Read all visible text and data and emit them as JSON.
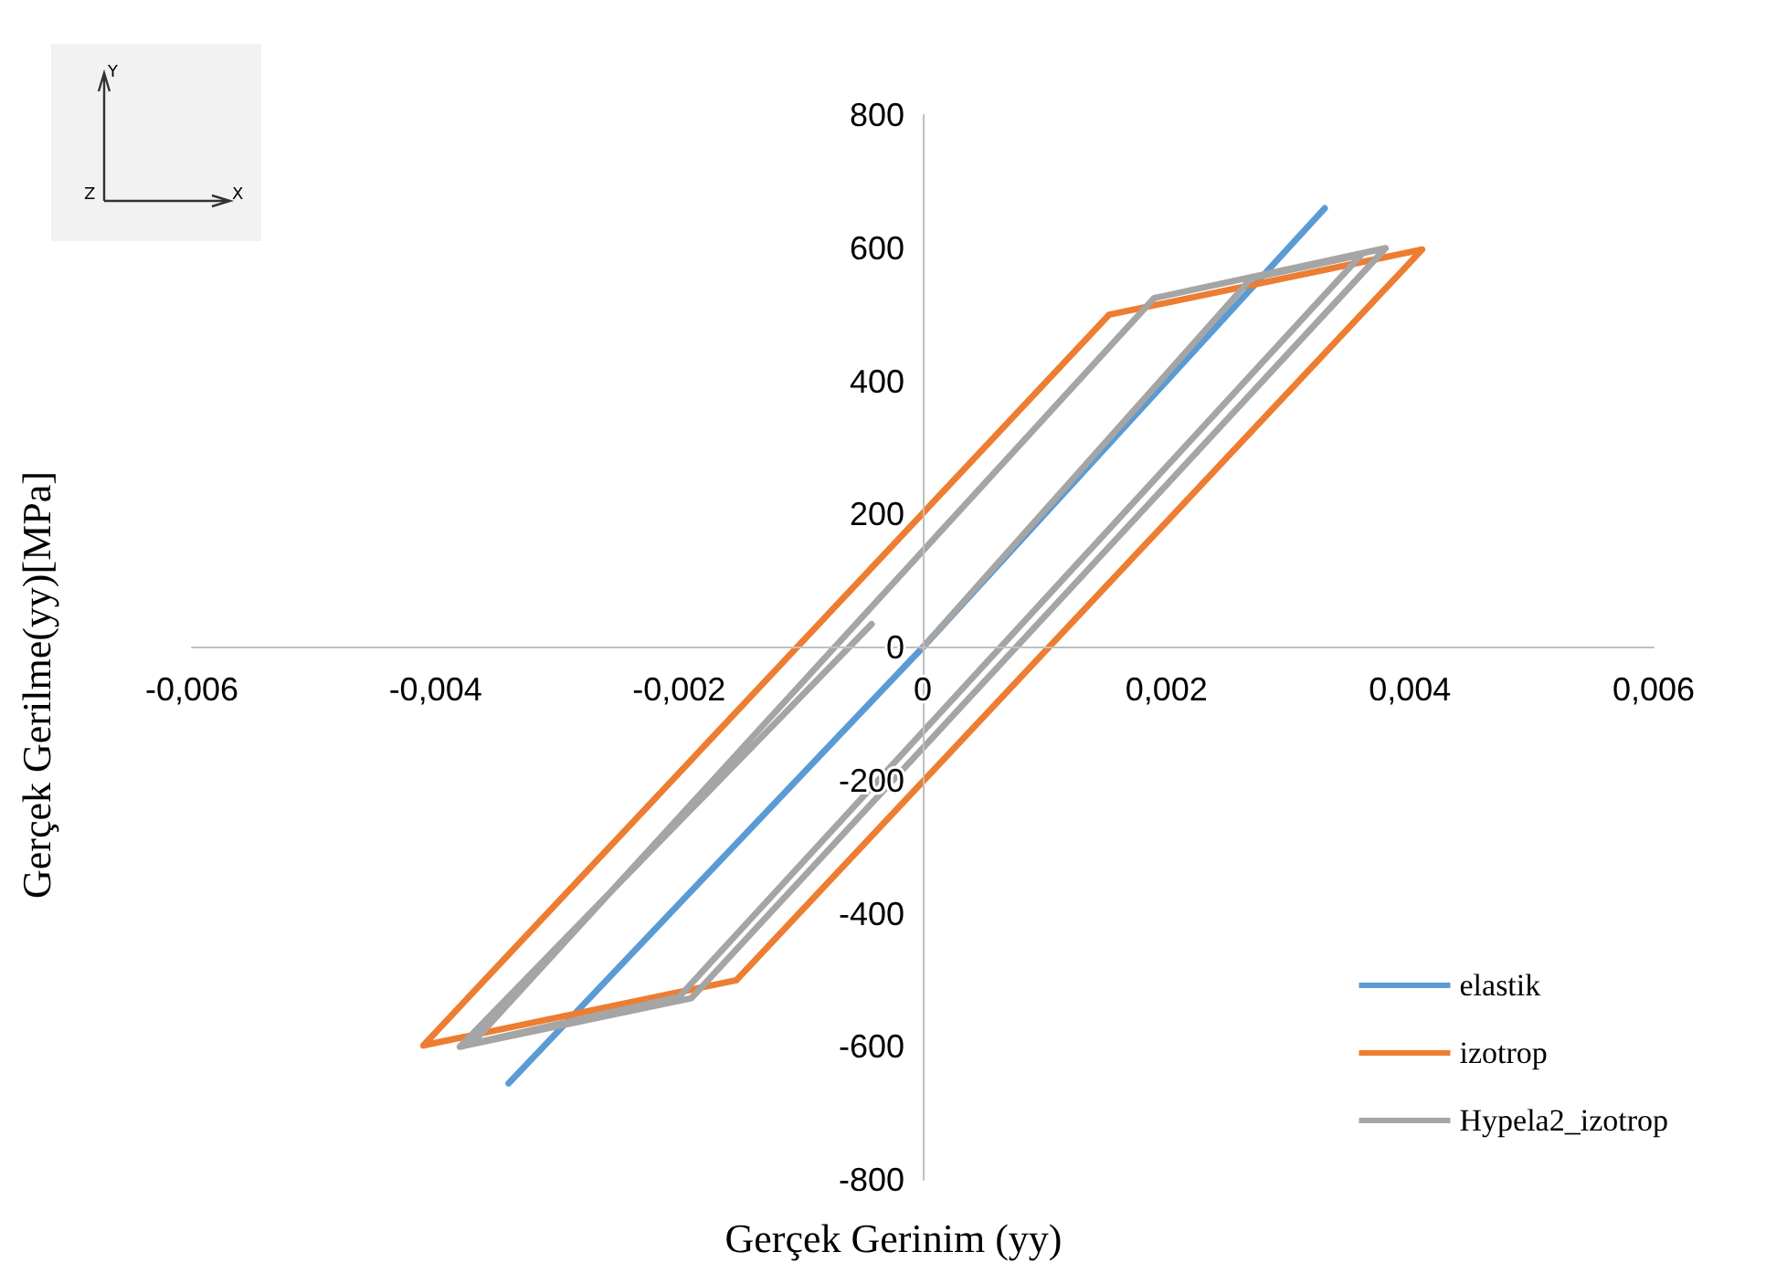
{
  "chart_data": {
    "type": "line",
    "xlabel": "Gerçek Gerinim (yy)",
    "ylabel": "Gerçek Gerilme(yy)[MPa]",
    "annotations": [
      "Y",
      "Z",
      "X"
    ],
    "series": [
      {
        "name": "elastik",
        "color": "#5b9bd5",
        "x": [
          -0.0034,
          0,
          0.0033
        ],
        "values": [
          -655,
          0,
          660
        ]
      },
      {
        "name": "izotrop",
        "color": "#ed7d31",
        "x": [
          0.00153,
          0.0041,
          -0.00153,
          -0.0041,
          0.00153,
          0.0041,
          -0.00153
        ],
        "values": [
          500,
          598,
          -500,
          -598,
          500,
          598,
          -500
        ]
      },
      {
        "name": "Hypela2_izotrop",
        "color": "#a5a5a5",
        "x": [
          0,
          0.0027,
          0.0036,
          -0.002,
          -0.0037,
          0.0019,
          0.0038,
          -0.0019,
          -0.0038,
          -0.00042
        ],
        "values": [
          0,
          555,
          590,
          -525,
          -595,
          525,
          600,
          -527,
          -600,
          35
        ]
      }
    ],
    "xlim": [
      -0.006,
      0.006
    ],
    "xticks": [
      {
        "value": -0.006,
        "label": "-0,006"
      },
      {
        "value": -0.004,
        "label": "-0,004"
      },
      {
        "value": -0.002,
        "label": "-0,002"
      },
      0,
      {
        "value": 0.002,
        "label": "0,002"
      },
      {
        "value": 0.004,
        "label": "0,004"
      },
      {
        "value": 0.006,
        "label": "0,006"
      }
    ],
    "ylim": [
      -800,
      800
    ],
    "yticks": [
      -800,
      -600,
      -400,
      -200,
      0,
      200,
      400,
      600,
      800
    ],
    "grid": false,
    "legend": "bottom right",
    "marker": "none",
    "line_style": "solid"
  }
}
